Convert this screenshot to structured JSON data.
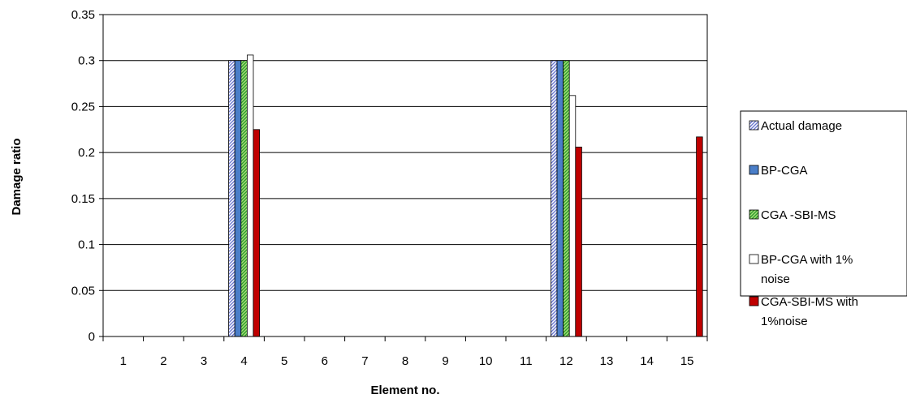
{
  "chart_data": {
    "type": "bar",
    "xlabel": "Element no.",
    "ylabel": "Damage ratio",
    "ylim": [
      0,
      0.35
    ],
    "yticks": [
      "0",
      "0.05",
      "0.1",
      "0.15",
      "0.2",
      "0.25",
      "0.3",
      "0.35"
    ],
    "categories": [
      "1",
      "2",
      "3",
      "4",
      "5",
      "6",
      "7",
      "8",
      "9",
      "10",
      "11",
      "12",
      "13",
      "14",
      "15"
    ],
    "grid": true,
    "legend_position": "right",
    "series": [
      {
        "name": "Actual damage",
        "label_lines": [
          "Actual damage"
        ],
        "fill": "hatch-blue",
        "values": [
          0,
          0,
          0,
          0.3,
          0,
          0,
          0,
          0,
          0,
          0,
          0,
          0.3,
          0,
          0,
          0
        ]
      },
      {
        "name": "BP-CGA",
        "label_lines": [
          "BP-CGA"
        ],
        "fill": "#4a7ec8",
        "values": [
          0,
          0,
          0,
          0.3,
          0,
          0,
          0,
          0,
          0,
          0,
          0,
          0.3,
          0,
          0,
          0
        ]
      },
      {
        "name": "CGA -SBI-MS",
        "label_lines": [
          "CGA -SBI-MS"
        ],
        "fill": "hatch-green",
        "values": [
          0,
          0,
          0,
          0.3,
          0,
          0,
          0,
          0,
          0,
          0,
          0,
          0.3,
          0,
          0,
          0
        ]
      },
      {
        "name": "BP-CGA with 1% noise",
        "label_lines": [
          "BP-CGA with 1%",
          "noise"
        ],
        "fill": "#ffffff",
        "values": [
          0,
          0,
          0,
          0.306,
          0,
          0,
          0,
          0,
          0,
          0,
          0,
          0.262,
          0,
          0,
          0
        ]
      },
      {
        "name": "CGA-SBI-MS with 1%noise",
        "label_lines": [
          "CGA-SBI-MS with",
          "1%noise"
        ],
        "fill": "#c00000",
        "values": [
          0,
          0,
          0,
          0.225,
          0,
          0,
          0,
          0,
          0,
          0,
          0,
          0.206,
          0,
          0,
          0.217
        ]
      }
    ]
  }
}
